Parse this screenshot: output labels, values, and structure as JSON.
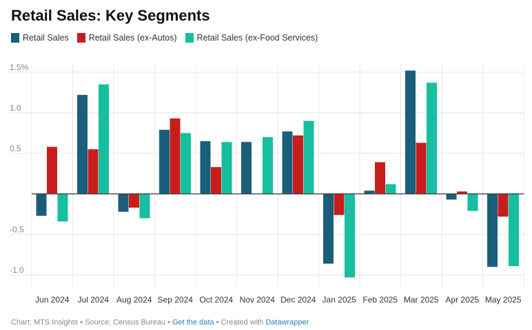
{
  "chart_data": {
    "type": "bar",
    "title": "Retail Sales: Key Segments",
    "categories": [
      "Jun 2024",
      "Jul 2024",
      "Aug 2024",
      "Sep 2024",
      "Oct 2024",
      "Nov 2024",
      "Dec 2024",
      "Jan 2025",
      "Feb 2025",
      "Mar 2025",
      "Apr 2025",
      "May 2025"
    ],
    "series": [
      {
        "name": "Retail Sales",
        "color": "#1b5e7a",
        "values": [
          -0.27,
          1.22,
          -0.22,
          0.79,
          0.65,
          0.64,
          0.77,
          -0.86,
          0.04,
          1.52,
          -0.07,
          -0.9
        ]
      },
      {
        "name": "Retail Sales (ex-Autos)",
        "color": "#c71e1d",
        "values": [
          0.58,
          0.55,
          -0.17,
          0.93,
          0.33,
          0.0,
          0.72,
          -0.26,
          0.39,
          0.63,
          0.03,
          -0.28
        ]
      },
      {
        "name": "Retail Sales (ex-Food Services)",
        "color": "#15bfa0",
        "values": [
          -0.34,
          1.35,
          -0.3,
          0.75,
          0.64,
          0.7,
          0.9,
          -1.03,
          0.12,
          1.37,
          -0.21,
          -0.89
        ]
      }
    ],
    "y_ticks": [
      -1.0,
      -0.5,
      0,
      0.5,
      1.0,
      1.5
    ],
    "y_tick_labels": [
      "-1.0",
      "-0.5",
      "",
      "0.5",
      "1.0",
      "1.5%"
    ],
    "ylim": [
      -1.05,
      1.55
    ],
    "xlabel": "",
    "ylabel": "",
    "grid": true,
    "legend": "top-left"
  },
  "footer": {
    "chart_by": "Chart: MTS Insights",
    "source": "Source: Census Bureau",
    "get_data": "Get the data",
    "created_with_label": "Created with",
    "tool": "Datawrapper",
    "sep": "•"
  }
}
